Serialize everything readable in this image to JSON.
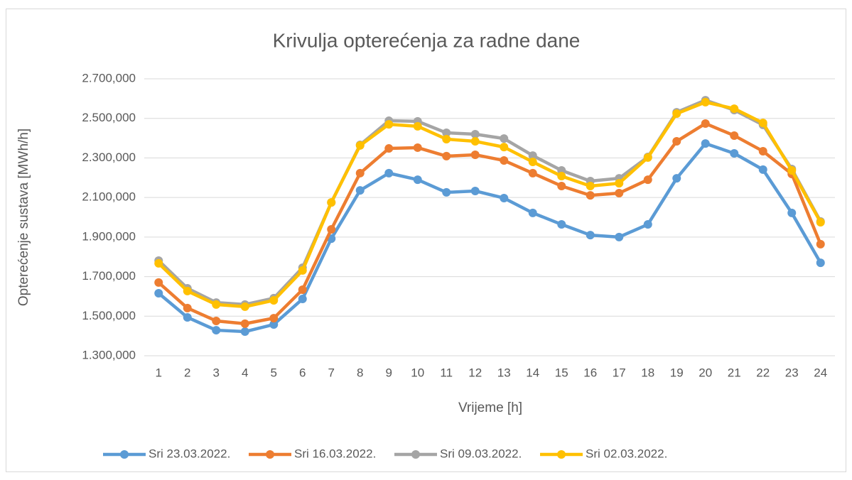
{
  "chart_data": {
    "type": "line",
    "title": "Krivulja opterećenja za radne dane",
    "x_label": "Vrijeme [h]",
    "y_label": "Opterećenje sustava [MWh/h]",
    "categories": [
      "1",
      "2",
      "3",
      "4",
      "5",
      "6",
      "7",
      "8",
      "9",
      "10",
      "11",
      "12",
      "13",
      "14",
      "15",
      "16",
      "17",
      "18",
      "19",
      "20",
      "21",
      "22",
      "23",
      "24"
    ],
    "ylim": [
      1300,
      2700
    ],
    "yticks": [
      {
        "value": 1300,
        "label": "1.300,000"
      },
      {
        "value": 1500,
        "label": "1.500,000"
      },
      {
        "value": 1700,
        "label": "1.700,000"
      },
      {
        "value": 1900,
        "label": "1.900,000"
      },
      {
        "value": 2100,
        "label": "2.100,000"
      },
      {
        "value": 2300,
        "label": "2.300,000"
      },
      {
        "value": 2500,
        "label": "2.500,000"
      },
      {
        "value": 2700,
        "label": "2.700,000"
      }
    ],
    "grid": true,
    "legend": "bottom",
    "series": [
      {
        "name": "Sri 23.03.2022.",
        "color": "#5b9bd5",
        "values": [
          1616,
          1494,
          1429,
          1422,
          1458,
          1587,
          1892,
          2136,
          2223,
          2190,
          2126,
          2133,
          2097,
          2022,
          1964,
          1910,
          1900,
          1964,
          2197,
          2373,
          2323,
          2241,
          2022,
          1770
        ]
      },
      {
        "name": "Sri 16.03.2022.",
        "color": "#ed7d31",
        "values": [
          1670,
          1541,
          1476,
          1462,
          1490,
          1634,
          1939,
          2223,
          2348,
          2352,
          2309,
          2316,
          2287,
          2223,
          2158,
          2111,
          2122,
          2190,
          2384,
          2474,
          2413,
          2334,
          2219,
          1864
        ]
      },
      {
        "name": "Sri 09.03.2022.",
        "color": "#a5a5a5",
        "values": [
          1781,
          1641,
          1569,
          1559,
          1591,
          1745,
          2075,
          2366,
          2488,
          2485,
          2427,
          2420,
          2398,
          2312,
          2237,
          2183,
          2197,
          2305,
          2531,
          2592,
          2542,
          2467,
          2244,
          1979
        ]
      },
      {
        "name": "Sri 02.03.2022.",
        "color": "#ffc000",
        "values": [
          1767,
          1627,
          1559,
          1548,
          1580,
          1731,
          2075,
          2363,
          2470,
          2460,
          2395,
          2384,
          2355,
          2280,
          2208,
          2158,
          2172,
          2302,
          2524,
          2582,
          2549,
          2477,
          2237,
          1975
        ]
      }
    ]
  }
}
